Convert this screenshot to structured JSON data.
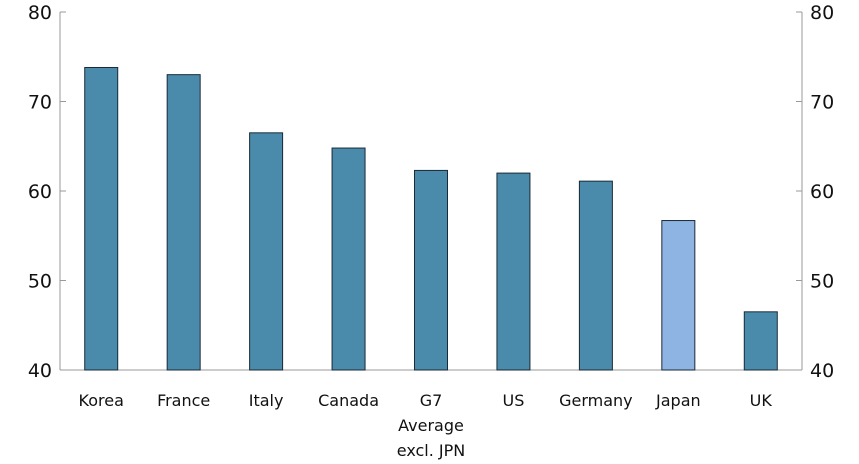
{
  "chart_data": {
    "type": "bar",
    "categories": [
      "Korea",
      "France",
      "Italy",
      "Canada",
      "G7 Average excl. JPN",
      "US",
      "Germany",
      "Japan",
      "UK"
    ],
    "category_lines": [
      [
        "Korea"
      ],
      [
        "France"
      ],
      [
        "Italy"
      ],
      [
        "Canada"
      ],
      [
        "G7",
        "Average",
        "excl. JPN"
      ],
      [
        "US"
      ],
      [
        "Germany"
      ],
      [
        "Japan"
      ],
      [
        "UK"
      ]
    ],
    "values": [
      73.8,
      73.0,
      66.5,
      64.8,
      62.3,
      62.0,
      61.1,
      56.7,
      46.5
    ],
    "ylim": [
      40,
      80
    ],
    "yticks": [
      40,
      50,
      60,
      70,
      80
    ],
    "title": "",
    "xlabel": "",
    "ylabel": "",
    "grid": false,
    "legend": "none",
    "dual_y_axis": true,
    "colors": {
      "bar": "#4a8bab",
      "highlight_bar": "#8eb4e3",
      "bar_outline": "#1a2a36",
      "axis": "#999999"
    },
    "highlight_category": "Japan"
  }
}
